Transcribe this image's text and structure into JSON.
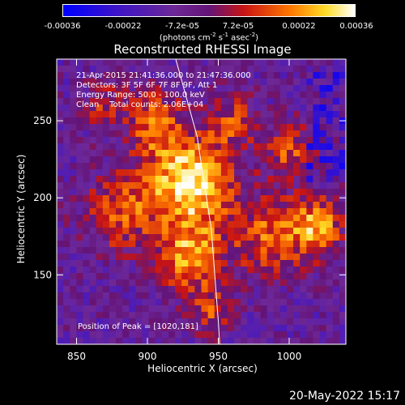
{
  "colorbar": {
    "ticks": [
      "-0.00036",
      "-0.00022",
      "-7.2e-05",
      "7.2e-05",
      "0.00022",
      "0.00036"
    ],
    "units": "(photons cm",
    "units_exp1": "-2",
    "units_mid": " s",
    "units_exp2": "-1",
    "units_mid2": " asec",
    "units_exp3": "-2",
    "units_end": ")"
  },
  "annotation": {
    "line1": "21-Apr-2015 21:41:36.000 to 21:47:36.000",
    "line2": "Detectors: 3F 5F 6F 7F 8F 9F, Att 1",
    "line3": "Energy Range: 50.0 - 100.0 keV",
    "line4": "Clean    Total counts: 2.06E+04",
    "peak": "Position of Peak = [1020,181]"
  },
  "footer": {
    "date": "20-May-2022 15:17"
  },
  "colors": {
    "background": "#000000",
    "axes": "#ffffff",
    "limb": "#ffffff"
  },
  "chart_data": {
    "type": "heatmap",
    "title": "Reconstructed RHESSI Image",
    "xlabel": "Heliocentric X (arcsec)",
    "ylabel": "Heliocentric Y (arcsec)",
    "xlim": [
      836,
      1040
    ],
    "ylim": [
      105,
      290
    ],
    "x_ticks": [
      850,
      900,
      950,
      1000
    ],
    "y_ticks": [
      150,
      200,
      250
    ],
    "colorbar_range": [
      -0.00036,
      0.00036
    ],
    "colormap": "blue-purple-red-yellow-white",
    "peak_position": [
      1020,
      181
    ],
    "limb_points": [
      [
        920,
        290
      ],
      [
        935,
        240
      ],
      [
        945,
        180
      ],
      [
        950,
        120
      ],
      [
        951,
        105
      ]
    ]
  }
}
